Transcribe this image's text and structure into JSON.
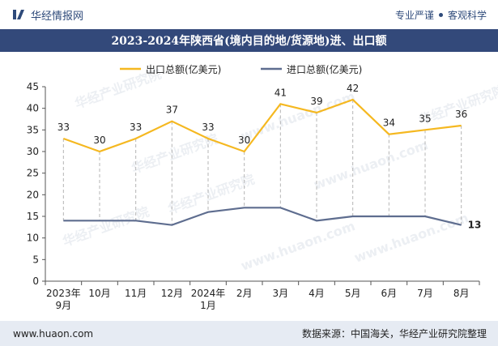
{
  "header": {
    "brand": "华经情报网",
    "tag_left": "专业严谨",
    "tag_right": "客观科学"
  },
  "chart_data": {
    "type": "line",
    "title": "2023-2024年陕西省(境内目的地/货源地)进、出口额",
    "categories": [
      [
        "2023年",
        "9月"
      ],
      [
        "10月"
      ],
      [
        "11月"
      ],
      [
        "12月"
      ],
      [
        "2024年",
        "1月"
      ],
      [
        "2月"
      ],
      [
        "3月"
      ],
      [
        "4月"
      ],
      [
        "5月"
      ],
      [
        "6月"
      ],
      [
        "7月"
      ],
      [
        "8月"
      ]
    ],
    "ylim": [
      0,
      45
    ],
    "yticks": [
      0,
      5,
      10,
      15,
      20,
      25,
      30,
      35,
      40,
      45
    ],
    "legend_position": "top",
    "series": [
      {
        "name": "出口总额(亿美元)",
        "color": "#f5b820",
        "values": [
          33,
          30,
          33,
          37,
          33,
          30,
          41,
          39,
          42,
          34,
          35,
          36
        ],
        "labels_all": true
      },
      {
        "name": "进口总额(亿美元)",
        "color": "#5e6d8f",
        "values": [
          14,
          14,
          14,
          13,
          16,
          17,
          17,
          14,
          15,
          15,
          15,
          13
        ],
        "labels_all": false
      }
    ],
    "grid": {
      "vertical_dashed_drop_lines": true
    }
  },
  "watermark": [
    "华经产业研究院",
    "www.huaon.com"
  ],
  "footer": {
    "url": "www.huaon.com",
    "source": "数据来源：中国海关，华经产业研究院整理"
  }
}
